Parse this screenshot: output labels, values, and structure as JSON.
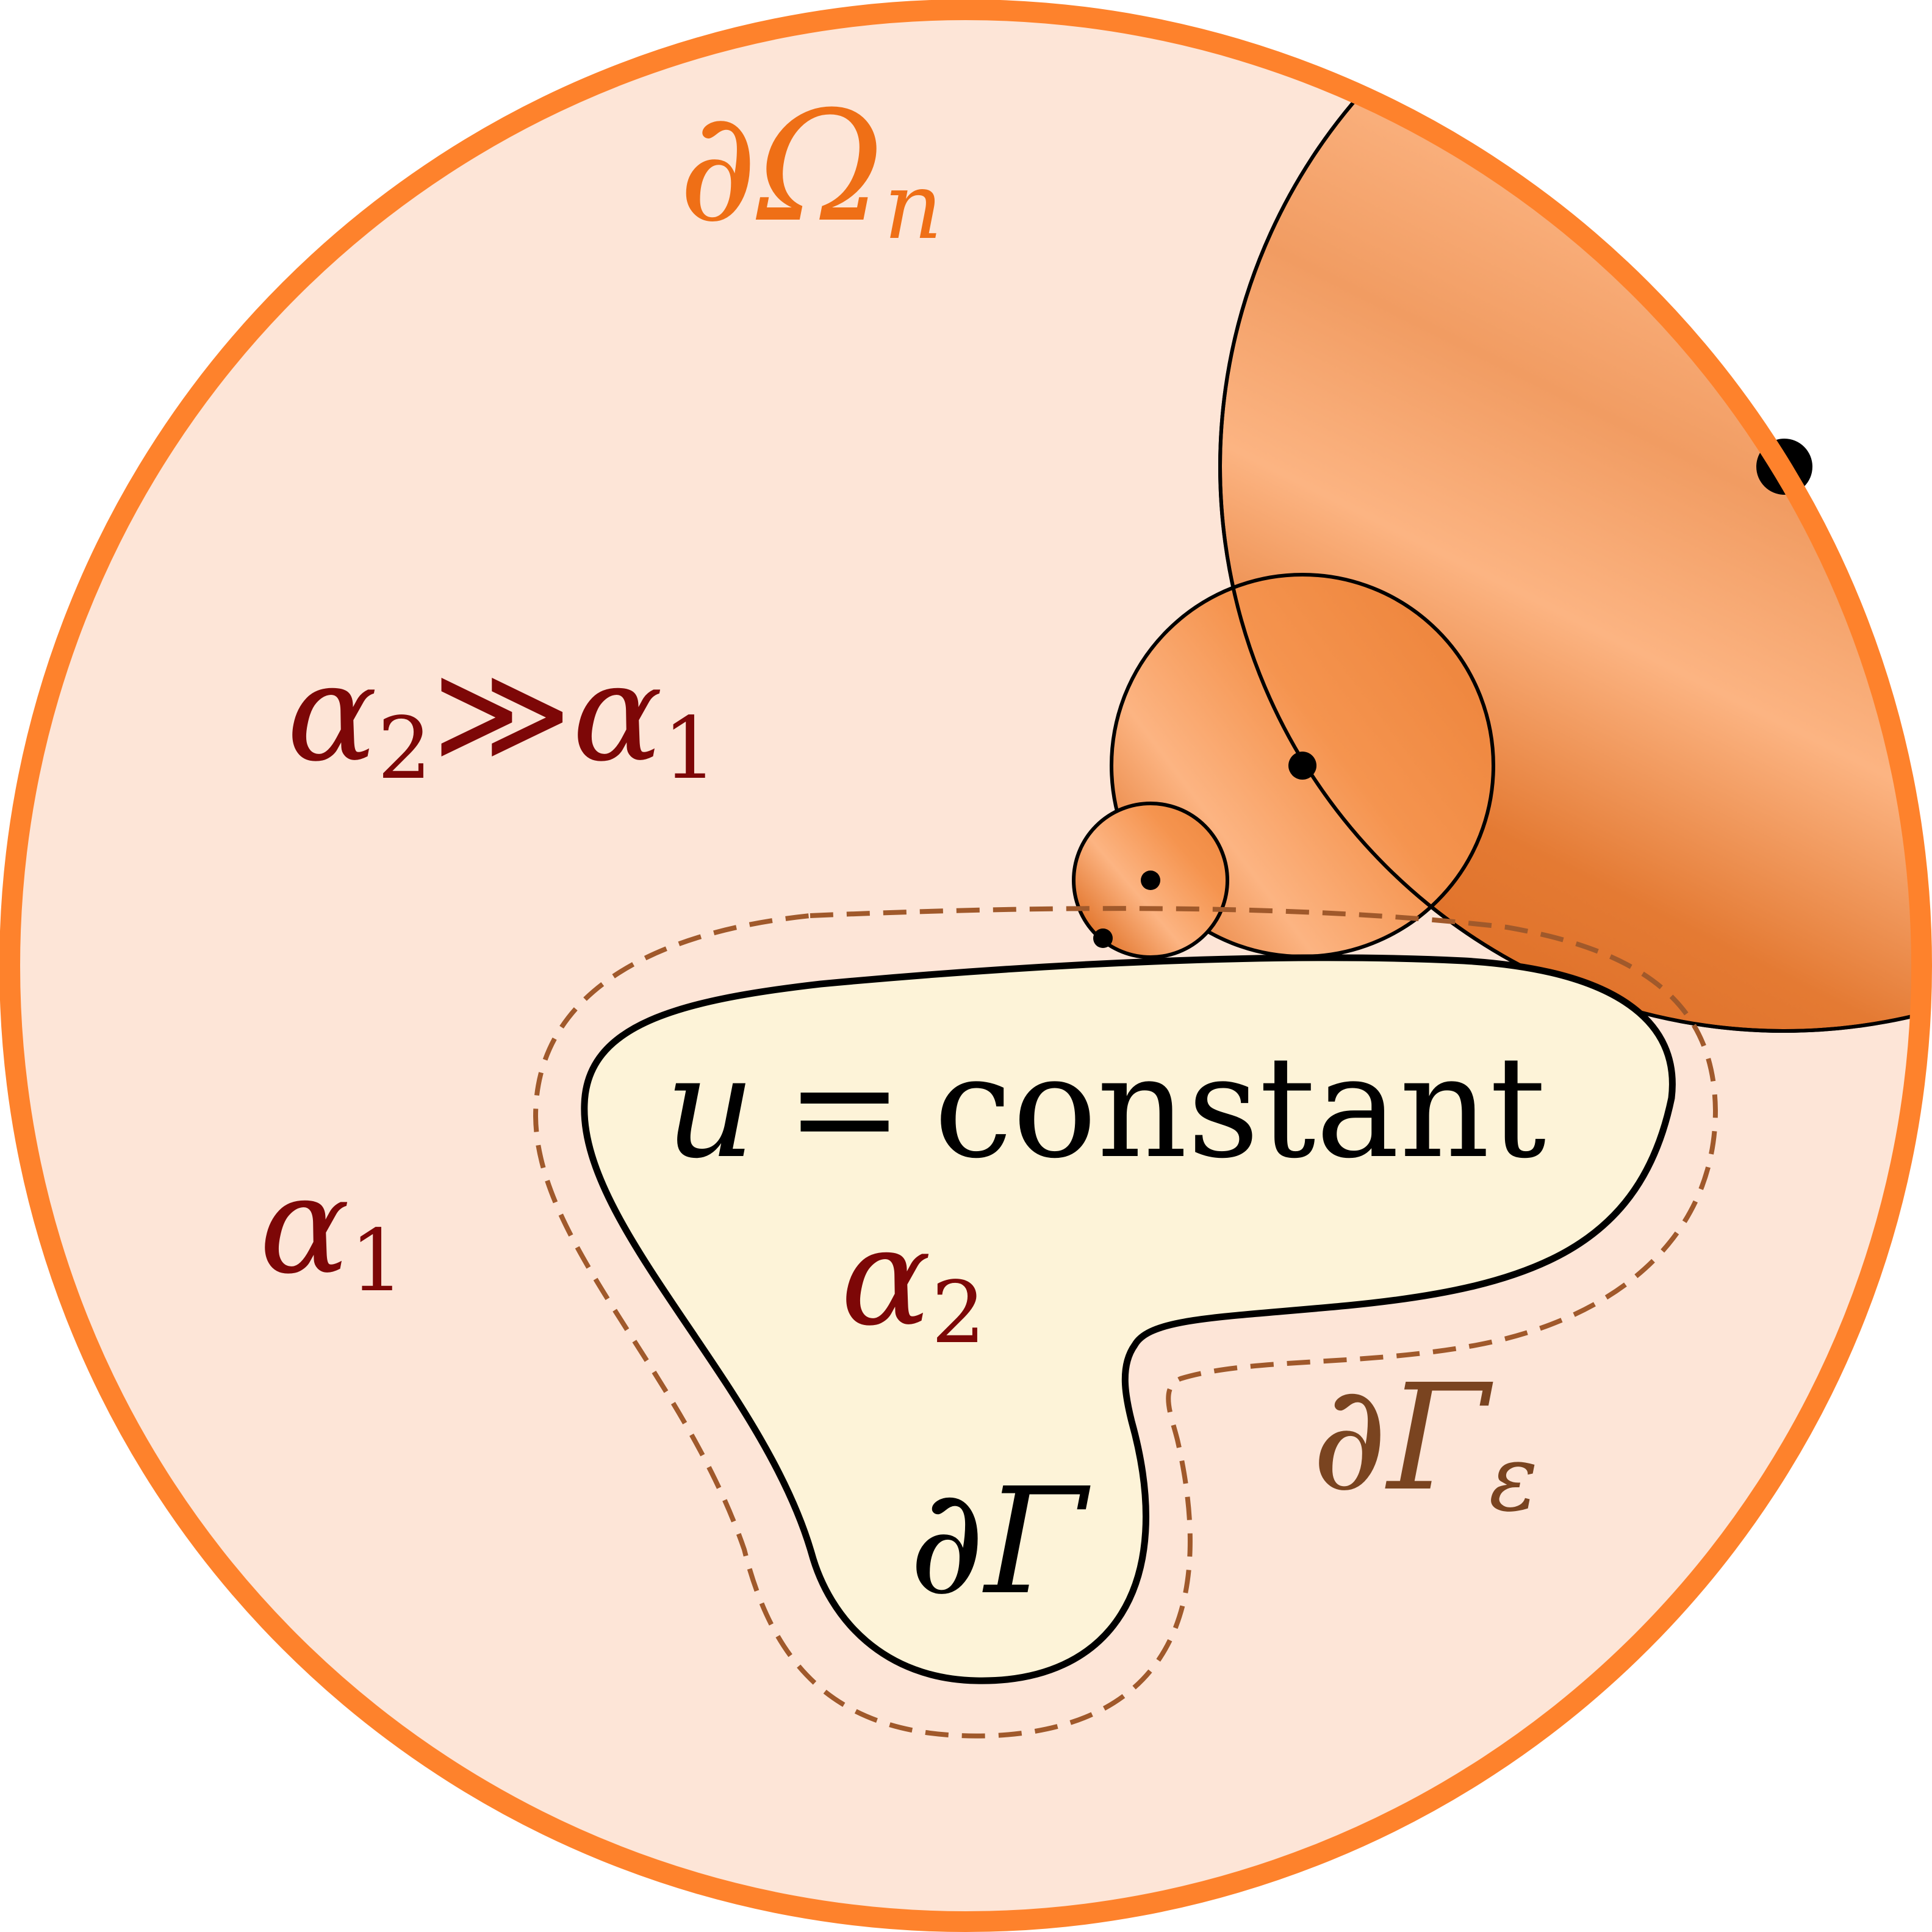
{
  "labels": {
    "omega_boundary": {
      "base": "∂Ω",
      "sub": "n"
    },
    "alpha_relation": {
      "left": "α",
      "left_sub": "2",
      "op": "≫",
      "right": "α",
      "right_sub": "1"
    },
    "alpha_outer": {
      "base": "α",
      "sub": "1"
    },
    "constant_eq": {
      "var": "u",
      "eq": "=",
      "word": "constant"
    },
    "alpha_inner": {
      "base": "α",
      "sub": "2"
    },
    "gamma_boundary": {
      "base": "∂Γ"
    },
    "gamma_eps_boundary": {
      "base": "∂Γ",
      "sub": "ε"
    }
  },
  "colors": {
    "domain_fill": "#fde5d7",
    "domain_stroke": "#fe822c",
    "omega_label": "#ef6f16",
    "alpha_label": "#7d0707",
    "gamma_fill": "#fdf3d8",
    "gamma_eps_stroke": "#a0592b",
    "shade_dark": "#e0722a",
    "shade_light": "#fcb482",
    "ink": "#000000"
  }
}
